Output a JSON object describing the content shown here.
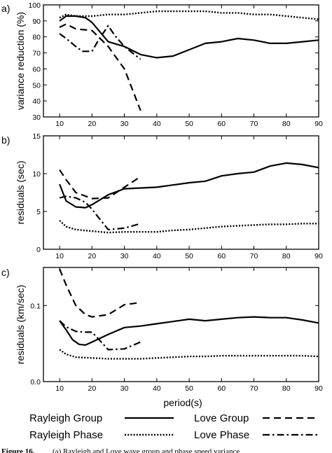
{
  "chart_data": [
    {
      "type": "line",
      "panel_label": "a)",
      "ylabel": "variance reduction (%)",
      "xlim": [
        5,
        90
      ],
      "ylim": [
        30,
        100
      ],
      "xticks": [
        "10",
        "20",
        "30",
        "40",
        "50",
        "60",
        "70",
        "80",
        "90"
      ],
      "yticks": [
        "30",
        "40",
        "50",
        "60",
        "70",
        "80",
        "90",
        "100"
      ],
      "series": [
        {
          "name": "Rayleigh Group",
          "style": "solid",
          "x": [
            10,
            12,
            15,
            18,
            20,
            25,
            30,
            35,
            40,
            45,
            50,
            55,
            60,
            65,
            70,
            75,
            80,
            85,
            90
          ],
          "y": [
            90,
            93,
            93,
            92,
            89,
            77,
            74,
            69,
            67,
            68,
            72,
            76,
            77,
            79,
            78,
            76,
            76,
            77,
            78
          ]
        },
        {
          "name": "Rayleigh Phase",
          "style": "dotted",
          "x": [
            10,
            12,
            15,
            20,
            25,
            30,
            35,
            40,
            45,
            50,
            55,
            60,
            65,
            70,
            75,
            80,
            85,
            90
          ],
          "y": [
            92,
            94,
            93,
            93,
            94,
            94,
            95,
            96,
            96,
            96,
            96,
            95,
            95,
            94,
            94,
            93,
            92,
            91
          ]
        },
        {
          "name": "Love Group",
          "style": "dashed",
          "x": [
            10,
            12,
            15,
            20,
            25,
            30,
            35
          ],
          "y": [
            86,
            88,
            85,
            84,
            74,
            60,
            34
          ]
        },
        {
          "name": "Love Phase",
          "style": "dashdot",
          "x": [
            10,
            12,
            15,
            17,
            20,
            22,
            25,
            27,
            30,
            35
          ],
          "y": [
            82,
            79,
            74,
            71,
            71,
            78,
            87,
            81,
            74,
            66
          ]
        }
      ]
    },
    {
      "type": "line",
      "panel_label": "b)",
      "ylabel": "residuals (sec)",
      "xlim": [
        5,
        90
      ],
      "ylim": [
        0,
        15
      ],
      "xticks": [
        "10",
        "20",
        "30",
        "40",
        "50",
        "60",
        "70",
        "80",
        "90"
      ],
      "yticks": [
        "0",
        "5",
        "10",
        "15"
      ],
      "series": [
        {
          "name": "Rayleigh Group",
          "style": "solid",
          "x": [
            10,
            12,
            15,
            18,
            20,
            25,
            30,
            35,
            40,
            45,
            50,
            55,
            60,
            65,
            70,
            75,
            80,
            85,
            90
          ],
          "y": [
            8.6,
            6.4,
            5.6,
            5.5,
            5.9,
            7.2,
            8.0,
            8.1,
            8.2,
            8.5,
            8.8,
            9.0,
            9.7,
            10.0,
            10.2,
            11.0,
            11.4,
            11.2,
            10.8
          ]
        },
        {
          "name": "Rayleigh Phase",
          "style": "dotted",
          "x": [
            10,
            12,
            15,
            20,
            25,
            30,
            35,
            40,
            45,
            50,
            55,
            60,
            65,
            70,
            75,
            80,
            85,
            90
          ],
          "y": [
            3.8,
            3.0,
            2.6,
            2.4,
            2.2,
            2.3,
            2.3,
            2.3,
            2.5,
            2.6,
            2.8,
            3.0,
            3.1,
            3.2,
            3.3,
            3.3,
            3.4,
            3.4
          ]
        },
        {
          "name": "Love Group",
          "style": "dashed",
          "x": [
            10,
            12,
            15,
            20,
            25,
            30,
            35
          ],
          "y": [
            10.5,
            9.2,
            7.5,
            6.7,
            6.8,
            8.2,
            9.6
          ]
        },
        {
          "name": "Love Phase",
          "style": "dashdot",
          "x": [
            10,
            12,
            15,
            18,
            20,
            22,
            25,
            30,
            35
          ],
          "y": [
            6.8,
            7.0,
            6.8,
            6.2,
            5.3,
            4.2,
            2.6,
            2.8,
            3.4
          ]
        }
      ]
    },
    {
      "type": "line",
      "panel_label": "c)",
      "ylabel": "residuals (km/sec)",
      "xlim": [
        5,
        90
      ],
      "ylim": [
        0.0,
        0.15
      ],
      "xticks": [
        "10",
        "20",
        "30",
        "40",
        "50",
        "60",
        "70",
        "80",
        "90"
      ],
      "yticks": [
        "0.0",
        "0.1"
      ],
      "series": [
        {
          "name": "Rayleigh Group",
          "style": "solid",
          "x": [
            10,
            12,
            14,
            16,
            18,
            20,
            25,
            30,
            35,
            40,
            45,
            50,
            55,
            60,
            65,
            70,
            75,
            80,
            85,
            90
          ],
          "y": [
            0.08,
            0.068,
            0.055,
            0.049,
            0.048,
            0.052,
            0.062,
            0.071,
            0.073,
            0.076,
            0.079,
            0.082,
            0.08,
            0.082,
            0.084,
            0.085,
            0.084,
            0.084,
            0.081,
            0.077
          ]
        },
        {
          "name": "Rayleigh Phase",
          "style": "dotted",
          "x": [
            10,
            12,
            15,
            20,
            25,
            30,
            35,
            40,
            45,
            50,
            55,
            60,
            65,
            70,
            75,
            80,
            85,
            90
          ],
          "y": [
            0.042,
            0.036,
            0.032,
            0.031,
            0.03,
            0.03,
            0.03,
            0.031,
            0.032,
            0.033,
            0.033,
            0.034,
            0.034,
            0.034,
            0.034,
            0.034,
            0.034,
            0.033
          ]
        },
        {
          "name": "Love Group",
          "style": "dashed",
          "x": [
            10,
            12,
            15,
            18,
            20,
            25,
            30,
            35
          ],
          "y": [
            0.148,
            0.127,
            0.1,
            0.088,
            0.085,
            0.088,
            0.101,
            0.104
          ]
        },
        {
          "name": "Love Phase",
          "style": "dashdot",
          "x": [
            10,
            12,
            15,
            18,
            20,
            22,
            25,
            30,
            35
          ],
          "y": [
            0.08,
            0.072,
            0.066,
            0.065,
            0.065,
            0.056,
            0.042,
            0.043,
            0.052
          ]
        }
      ]
    }
  ],
  "xlabel": "period(s)",
  "legend": [
    {
      "label": "Rayleigh Group",
      "style": "solid"
    },
    {
      "label": "Love Group",
      "style": "dashed"
    },
    {
      "label": "Rayleigh Phase",
      "style": "dotted"
    },
    {
      "label": "Love Phase",
      "style": "dashdot"
    }
  ],
  "caption": {
    "bold": "Figure 16.",
    "text": "(a) Rayleigh and Love wave group and phase speed variance"
  }
}
